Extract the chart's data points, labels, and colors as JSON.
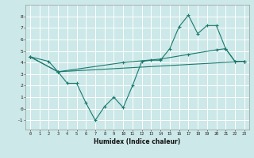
{
  "xlabel": "Humidex (Indice chaleur)",
  "bg_color": "#cce8e8",
  "line_color": "#1a7a6e",
  "grid_color": "#ffffff",
  "xlim": [
    -0.5,
    23.5
  ],
  "ylim": [
    -1.8,
    9.0
  ],
  "yticks": [
    -1,
    0,
    1,
    2,
    3,
    4,
    5,
    6,
    7,
    8
  ],
  "xticks": [
    0,
    1,
    2,
    3,
    4,
    5,
    6,
    7,
    8,
    9,
    10,
    11,
    12,
    13,
    14,
    15,
    16,
    17,
    18,
    19,
    20,
    21,
    22,
    23
  ],
  "line1_x": [
    0,
    2,
    3,
    4,
    5,
    6,
    7,
    8,
    9,
    10,
    11,
    12,
    13,
    14,
    15,
    16,
    17,
    18,
    19,
    20,
    21,
    22,
    23
  ],
  "line1_y": [
    4.5,
    4.1,
    3.2,
    2.2,
    2.2,
    0.5,
    -1.0,
    0.2,
    1.0,
    0.1,
    2.0,
    4.1,
    4.2,
    4.2,
    5.2,
    7.1,
    8.1,
    6.5,
    7.2,
    7.2,
    5.2,
    4.1,
    4.1
  ],
  "line2_x": [
    0,
    3,
    23
  ],
  "line2_y": [
    4.5,
    3.2,
    4.1
  ],
  "line3_x": [
    0,
    3,
    10,
    14,
    17,
    20,
    21,
    22,
    23
  ],
  "line3_y": [
    4.5,
    3.2,
    4.0,
    4.3,
    4.7,
    5.1,
    5.2,
    4.1,
    4.1
  ]
}
